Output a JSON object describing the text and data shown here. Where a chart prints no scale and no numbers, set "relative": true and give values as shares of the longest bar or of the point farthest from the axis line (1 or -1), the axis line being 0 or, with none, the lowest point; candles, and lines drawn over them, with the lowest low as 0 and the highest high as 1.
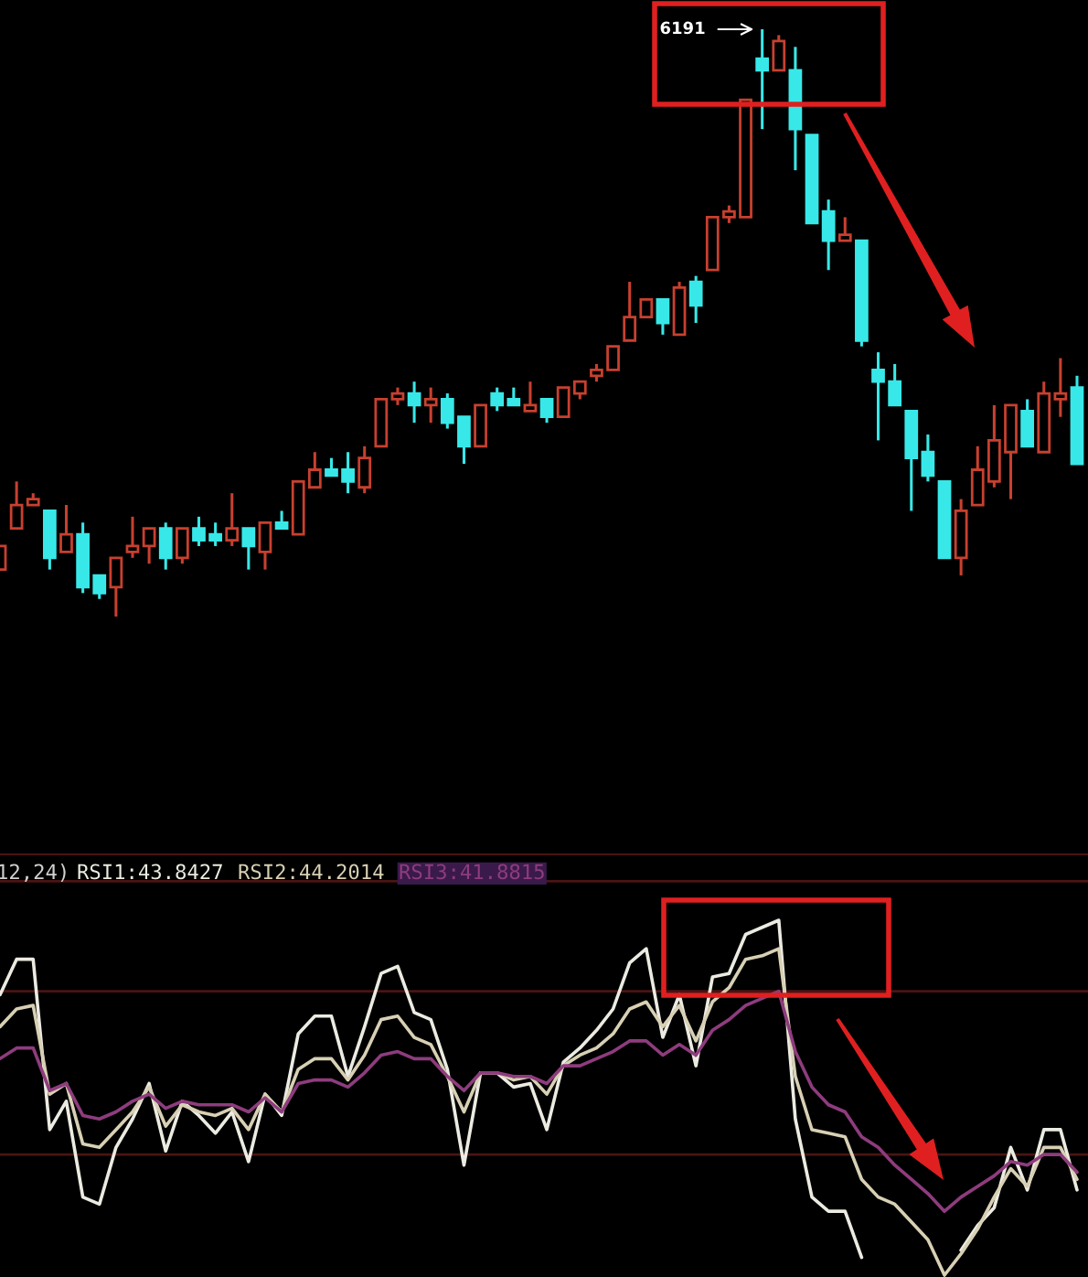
{
  "chart_data": [
    {
      "type": "candlestick",
      "relative": true,
      "categories": [
        null,
        null,
        null,
        null,
        null,
        null,
        null,
        null,
        null,
        null,
        null,
        null,
        null,
        null,
        null,
        null,
        null,
        null,
        null,
        null,
        null,
        null,
        null,
        null,
        null,
        null,
        null,
        null,
        null,
        null,
        null,
        null,
        null,
        null,
        null,
        null,
        null,
        null,
        null,
        null,
        null,
        null,
        null,
        null,
        null,
        null,
        null,
        null,
        null,
        null,
        null,
        null,
        null,
        null,
        null,
        null,
        null,
        null,
        null,
        null,
        null,
        null,
        null,
        null,
        null,
        null
      ],
      "ohlc": [
        [
          0.08,
          0.12,
          0.08,
          0.12
        ],
        [
          0.15,
          0.23,
          0.15,
          0.19
        ],
        [
          0.19,
          0.21,
          0.19,
          0.2
        ],
        [
          0.18,
          0.18,
          0.08,
          0.1
        ],
        [
          0.11,
          0.19,
          0.11,
          0.14
        ],
        [
          0.14,
          0.16,
          0.04,
          0.05
        ],
        [
          0.07,
          0.07,
          0.03,
          0.04
        ],
        [
          0.05,
          0.1,
          0,
          0.1
        ],
        [
          0.11,
          0.17,
          0.1,
          0.12
        ],
        [
          0.12,
          0.15,
          0.09,
          0.15
        ],
        [
          0.15,
          0.16,
          0.08,
          0.1
        ],
        [
          0.1,
          0.15,
          0.09,
          0.15
        ],
        [
          0.15,
          0.17,
          0.12,
          0.13
        ],
        [
          0.14,
          0.16,
          0.12,
          0.13
        ],
        [
          0.13,
          0.21,
          0.12,
          0.15
        ],
        [
          0.15,
          0.15,
          0.08,
          0.12
        ],
        [
          0.11,
          0.16,
          0.08,
          0.16
        ],
        [
          0.16,
          0.18,
          0.15,
          0.15
        ],
        [
          0.14,
          0.23,
          0.14,
          0.23
        ],
        [
          0.22,
          0.28,
          0.22,
          0.25
        ],
        [
          0.25,
          0.27,
          0.24,
          0.24
        ],
        [
          0.25,
          0.28,
          0.21,
          0.23
        ],
        [
          0.22,
          0.29,
          0.21,
          0.27
        ],
        [
          0.29,
          0.37,
          0.29,
          0.37
        ],
        [
          0.37,
          0.39,
          0.36,
          0.38
        ],
        [
          0.38,
          0.4,
          0.33,
          0.36
        ],
        [
          0.36,
          0.39,
          0.33,
          0.37
        ],
        [
          0.37,
          0.38,
          0.32,
          0.33
        ],
        [
          0.34,
          0.34,
          0.26,
          0.29
        ],
        [
          0.29,
          0.36,
          0.29,
          0.36
        ],
        [
          0.38,
          0.39,
          0.35,
          0.36
        ],
        [
          0.37,
          0.39,
          0.36,
          0.36
        ],
        [
          0.35,
          0.4,
          0.35,
          0.36
        ],
        [
          0.37,
          0.37,
          0.33,
          0.34
        ],
        [
          0.34,
          0.39,
          0.34,
          0.39
        ],
        [
          0.38,
          0.4,
          0.37,
          0.4
        ],
        [
          0.41,
          0.43,
          0.4,
          0.42
        ],
        [
          0.42,
          0.46,
          0.42,
          0.46
        ],
        [
          0.47,
          0.57,
          0.47,
          0.51
        ],
        [
          0.51,
          0.54,
          0.51,
          0.54
        ],
        [
          0.54,
          0.54,
          0.48,
          0.5
        ],
        [
          0.48,
          0.57,
          0.48,
          0.56
        ],
        [
          0.57,
          0.58,
          0.5,
          0.53
        ],
        [
          0.59,
          0.68,
          0.59,
          0.68
        ],
        [
          0.68,
          0.7,
          0.67,
          0.69
        ],
        [
          0.68,
          0.88,
          0.68,
          0.88
        ],
        [
          0.95,
          1,
          0.83,
          0.93
        ],
        [
          0.93,
          0.99,
          0.93,
          0.98
        ],
        [
          0.93,
          0.97,
          0.76,
          0.83
        ],
        [
          0.82,
          0.82,
          0.67,
          0.67
        ],
        [
          0.69,
          0.71,
          0.59,
          0.64
        ],
        [
          0.64,
          0.68,
          0.64,
          0.65
        ],
        [
          0.64,
          0.64,
          0.46,
          0.47
        ],
        [
          0.42,
          0.45,
          0.3,
          0.4
        ],
        [
          0.4,
          0.43,
          0.36,
          0.36
        ],
        [
          0.35,
          0.35,
          0.18,
          0.27
        ],
        [
          0.28,
          0.31,
          0.23,
          0.24
        ],
        [
          0.23,
          0.23,
          0.1,
          0.1
        ],
        [
          0.1,
          0.2,
          0.07,
          0.18
        ],
        [
          0.19,
          0.29,
          0.19,
          0.25
        ],
        [
          0.23,
          0.36,
          0.22,
          0.3
        ],
        [
          0.28,
          0.36,
          0.2,
          0.36
        ],
        [
          0.35,
          0.37,
          0.29,
          0.29
        ],
        [
          0.28,
          0.4,
          0.28,
          0.38
        ],
        [
          0.37,
          0.44,
          0.34,
          0.38
        ],
        [
          0.39,
          0.41,
          0.26,
          0.26
        ]
      ],
      "colors": [
        "#c8402f",
        "#c8402f",
        "#c8402f",
        "#38e8e8",
        "#c8402f",
        "#38e8e8",
        "#38e8e8",
        "#c8402f",
        "#c8402f",
        "#c8402f",
        "#38e8e8",
        "#c8402f",
        "#38e8e8",
        "#38e8e8",
        "#c8402f",
        "#38e8e8",
        "#c8402f",
        "#38e8e8",
        "#c8402f",
        "#c8402f",
        "#38e8e8",
        "#38e8e8",
        "#c8402f",
        "#c8402f",
        "#c8402f",
        "#38e8e8",
        "#c8402f",
        "#38e8e8",
        "#38e8e8",
        "#c8402f",
        "#38e8e8",
        "#38e8e8",
        "#c8402f",
        "#38e8e8",
        "#c8402f",
        "#c8402f",
        "#c8402f",
        "#c8402f",
        "#c8402f",
        "#c8402f",
        "#38e8e8",
        "#c8402f",
        "#38e8e8",
        "#c8402f",
        "#c8402f",
        "#c8402f",
        "#38e8e8",
        "#c8402f",
        "#38e8e8",
        "#38e8e8",
        "#38e8e8",
        "#c8402f",
        "#38e8e8",
        "#38e8e8",
        "#38e8e8",
        "#38e8e8",
        "#38e8e8",
        "#38e8e8",
        "#c8402f",
        "#c8402f",
        "#c8402f",
        "#c8402f",
        "#38e8e8",
        "#c8402f",
        "#c8402f",
        "#38e8e8"
      ],
      "annotations": [
        "6191"
      ]
    },
    {
      "type": "line",
      "relative": true,
      "categories": [
        null,
        null,
        null,
        null,
        null,
        null,
        null,
        null,
        null,
        null,
        null,
        null,
        null,
        null,
        null,
        null,
        null,
        null,
        null,
        null,
        null,
        null,
        null,
        null,
        null,
        null,
        null,
        null,
        null,
        null,
        null,
        null,
        null,
        null,
        null,
        null,
        null,
        null,
        null,
        null,
        null,
        null,
        null,
        null,
        null,
        null,
        null,
        null,
        null,
        null,
        null,
        null,
        null,
        null,
        null,
        null,
        null,
        null,
        null,
        null,
        null,
        null,
        null,
        null,
        null,
        null
      ],
      "series": [
        {
          "name": "RSI1:43.8427",
          "color": "#ecebe2",
          "values": [
            0.79,
            0.89,
            0.89,
            0.41,
            0.49,
            0.22,
            0.2,
            0.36,
            0.44,
            0.54,
            0.35,
            0.49,
            0.45,
            0.4,
            0.46,
            0.32,
            0.51,
            0.45,
            0.68,
            0.73,
            0.73,
            0.56,
            0.7,
            0.85,
            0.87,
            0.74,
            0.72,
            0.58,
            0.31,
            0.57,
            0.57,
            0.53,
            0.54,
            0.41,
            0.6,
            0.64,
            0.69,
            0.75,
            0.88,
            0.92,
            0.67,
            0.79,
            0.59,
            0.84,
            0.85,
            0.96,
            0.98,
            1,
            0.44,
            0.22,
            0.18,
            0.18,
            0.05,
            null,
            null,
            null,
            null,
            null,
            0.07,
            0.14,
            0.19,
            0.36,
            0.24,
            0.41,
            0.41,
            0.24
          ]
        },
        {
          "name": "RSI2:44.2014",
          "color": "#d8d0b4",
          "values": [
            0.7,
            0.75,
            0.76,
            0.51,
            0.54,
            0.37,
            0.36,
            0.41,
            0.46,
            0.53,
            0.42,
            0.48,
            0.46,
            0.45,
            0.47,
            0.41,
            0.51,
            0.46,
            0.58,
            0.61,
            0.61,
            0.55,
            0.62,
            0.72,
            0.73,
            0.67,
            0.65,
            0.56,
            0.46,
            0.57,
            0.57,
            0.55,
            0.56,
            0.51,
            0.59,
            0.62,
            0.64,
            0.68,
            0.75,
            0.77,
            0.7,
            0.76,
            0.66,
            0.77,
            0.81,
            0.89,
            0.9,
            0.92,
            0.56,
            0.41,
            0.4,
            0.39,
            0.27,
            0.22,
            0.2,
            0.15,
            0.1,
            0,
            0.06,
            0.13,
            0.22,
            0.3,
            0.25,
            0.36,
            0.36,
            0.27
          ]
        },
        {
          "name": "RSI3:41.8815",
          "color": "#8e3c7e",
          "values": [
            0.61,
            0.64,
            0.64,
            0.52,
            0.54,
            0.45,
            0.44,
            0.46,
            0.49,
            0.51,
            0.47,
            0.49,
            0.48,
            0.48,
            0.48,
            0.46,
            0.5,
            0.46,
            0.54,
            0.55,
            0.55,
            0.53,
            0.57,
            0.62,
            0.63,
            0.61,
            0.61,
            0.56,
            0.52,
            0.57,
            0.57,
            0.56,
            0.56,
            0.54,
            0.59,
            0.59,
            0.61,
            0.63,
            0.66,
            0.66,
            0.62,
            0.65,
            0.62,
            0.69,
            0.72,
            0.76,
            0.78,
            0.8,
            0.63,
            0.53,
            0.48,
            0.46,
            0.39,
            0.36,
            0.31,
            0.27,
            0.23,
            0.18,
            0.22,
            0.25,
            0.28,
            0.32,
            0.31,
            0.34,
            0.34,
            0.29
          ]
        }
      ],
      "ref_lines": [
        {
          "axis": "y",
          "value": 1.11,
          "color": "#4a1414"
        },
        {
          "axis": "y",
          "value": 0.8,
          "color": "#4a1414"
        },
        {
          "axis": "y",
          "value": 0.34,
          "color": "#4a1414"
        }
      ],
      "annotations": [
        "12,24)"
      ]
    }
  ]
}
